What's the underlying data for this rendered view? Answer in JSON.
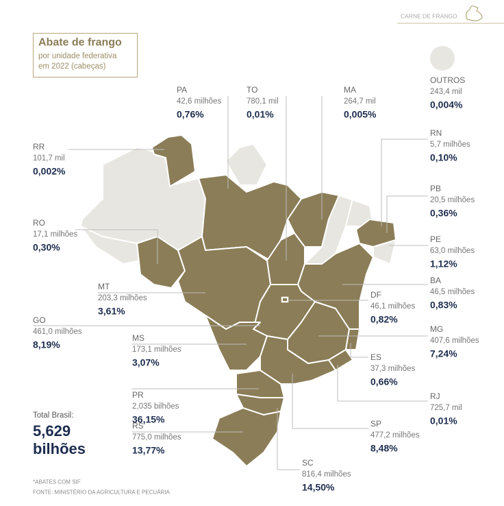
{
  "header": {
    "title": "Abate de frango",
    "subtitle": [
      "por unidade federativa",
      "em 2022 (cabeças)"
    ],
    "section": "CARNE DE FRANGO"
  },
  "states": [
    {
      "code": "PA",
      "amount": "42,6 milhões",
      "share": "0,76%"
    },
    {
      "code": "TO",
      "amount": "780,1 mil",
      "share": "0,01%"
    },
    {
      "code": "MA",
      "amount": "264,7 mil",
      "share": "0,005%"
    },
    {
      "code": "OUTROS",
      "amount": "243,4 mil",
      "share": "0,004%"
    },
    {
      "code": "RR",
      "amount": "101,7 mil",
      "share": "0,002%"
    },
    {
      "code": "RN",
      "amount": "5,7 milhões",
      "share": "0,10%"
    },
    {
      "code": "PB",
      "amount": "20,5 milhões",
      "share": "0,36%"
    },
    {
      "code": "RO",
      "amount": "17,1 milhões",
      "share": "0,30%"
    },
    {
      "code": "PE",
      "amount": "63,0 milhões",
      "share": "1,12%"
    },
    {
      "code": "BA",
      "amount": "46,5 milhões",
      "share": "0,83%"
    },
    {
      "code": "MT",
      "amount": "203,3 milhões",
      "share": "3,61%"
    },
    {
      "code": "DF",
      "amount": "46,1 milhões",
      "share": "0,82%"
    },
    {
      "code": "GO",
      "amount": "461,0 milhões",
      "share": "8,19%"
    },
    {
      "code": "MG",
      "amount": "407,6 milhões",
      "share": "7,24%"
    },
    {
      "code": "MS",
      "amount": "173,1 milhões",
      "share": "3,07%"
    },
    {
      "code": "ES",
      "amount": "37,3 milhões",
      "share": "0,66%"
    },
    {
      "code": "PR",
      "amount": "2,035 bilhões",
      "share": "36,15%"
    },
    {
      "code": "RJ",
      "amount": "725,7 mil",
      "share": "0,01%"
    },
    {
      "code": "SP",
      "amount": "477,2 milhões",
      "share": "8,48%"
    },
    {
      "code": "RS",
      "amount": "775,0 milhões",
      "share": "13,77%"
    },
    {
      "code": "SC",
      "amount": "816,4 milhões",
      "share": "14,50%"
    }
  ],
  "total": {
    "label": "Total Brasil:",
    "value": "5,629",
    "unit": "bilhões"
  },
  "notes": [
    "*ABATES COM SIF",
    "FONTE: MINISTÉRIO DA AGRICULTURA E PECUÁRIA"
  ]
}
